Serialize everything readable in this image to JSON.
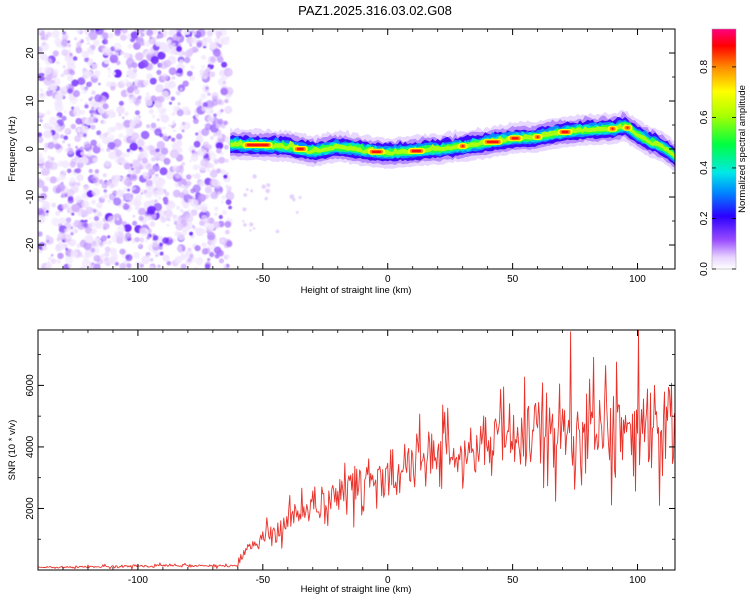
{
  "title": "PAZ1.2025.316.03.02.G08",
  "chart_data": [
    {
      "type": "heatmap",
      "xlabel": "Height of straight line (km)",
      "ylabel": "Frequency (Hz)",
      "xlim": [
        -140,
        115
      ],
      "ylim": [
        -25,
        25
      ],
      "xticks": [
        -100,
        -50,
        0,
        50,
        100
      ],
      "xtick_labels": [
        "-100",
        "-50",
        "0",
        "50",
        "100"
      ],
      "yticks": [
        20,
        10,
        0,
        -10,
        -20
      ],
      "ytick_labels": [
        "20",
        "10",
        "0",
        "-10",
        "-20"
      ],
      "noise_region_x": [
        -140,
        -63
      ],
      "ridge": {
        "x": [
          -63,
          -50,
          -40,
          -30,
          -20,
          -10,
          0,
          10,
          20,
          30,
          40,
          50,
          60,
          70,
          80,
          90,
          95,
          100,
          105,
          110,
          115
        ],
        "freq": [
          1,
          0.8,
          0.5,
          -0.5,
          0.5,
          -0.3,
          -0.8,
          -0.5,
          0,
          0.6,
          1.3,
          2.2,
          2.5,
          3.5,
          4,
          4.2,
          4.8,
          3,
          1.5,
          0.5,
          -1.5
        ]
      },
      "colorbar": {
        "label": "Normalized spectral amplitude",
        "ticks": [
          0.0,
          0.2,
          0.4,
          0.6,
          0.8
        ],
        "tick_labels": [
          "0.0",
          "0.2",
          "0.4",
          "0.6",
          "0.8"
        ],
        "range": [
          0,
          0.95
        ]
      }
    },
    {
      "type": "line",
      "xlabel": "Height of straight line (km)",
      "ylabel": "SNR (10 * v/v)",
      "xlim": [
        -140,
        115
      ],
      "ylim": [
        0,
        7800
      ],
      "xticks": [
        -100,
        -50,
        0,
        50,
        100
      ],
      "xtick_labels": [
        "-100",
        "-50",
        "0",
        "50",
        "100"
      ],
      "yticks": [
        2000,
        4000,
        6000
      ],
      "ytick_labels": [
        "2000",
        "4000",
        "6000"
      ],
      "series": [
        {
          "name": "SNR",
          "color": "#e8322a",
          "envelope_x": [
            -140,
            -120,
            -100,
            -80,
            -60,
            -57,
            -50,
            -40,
            -30,
            -20,
            -10,
            0,
            10,
            20,
            30,
            40,
            50,
            60,
            70,
            80,
            90,
            100,
            110,
            115
          ],
          "envelope_y": [
            80,
            100,
            120,
            150,
            140,
            600,
            1100,
            1600,
            2100,
            2500,
            2800,
            3000,
            3400,
            3800,
            4100,
            4200,
            4300,
            4400,
            4600,
            4600,
            4500,
            4500,
            4400,
            4300
          ],
          "envelope_spread": [
            30,
            40,
            50,
            60,
            60,
            250,
            400,
            550,
            700,
            750,
            800,
            850,
            900,
            1000,
            1100,
            1200,
            1200,
            1300,
            1400,
            1400,
            1400,
            1500,
            1500,
            1500
          ]
        }
      ]
    }
  ]
}
